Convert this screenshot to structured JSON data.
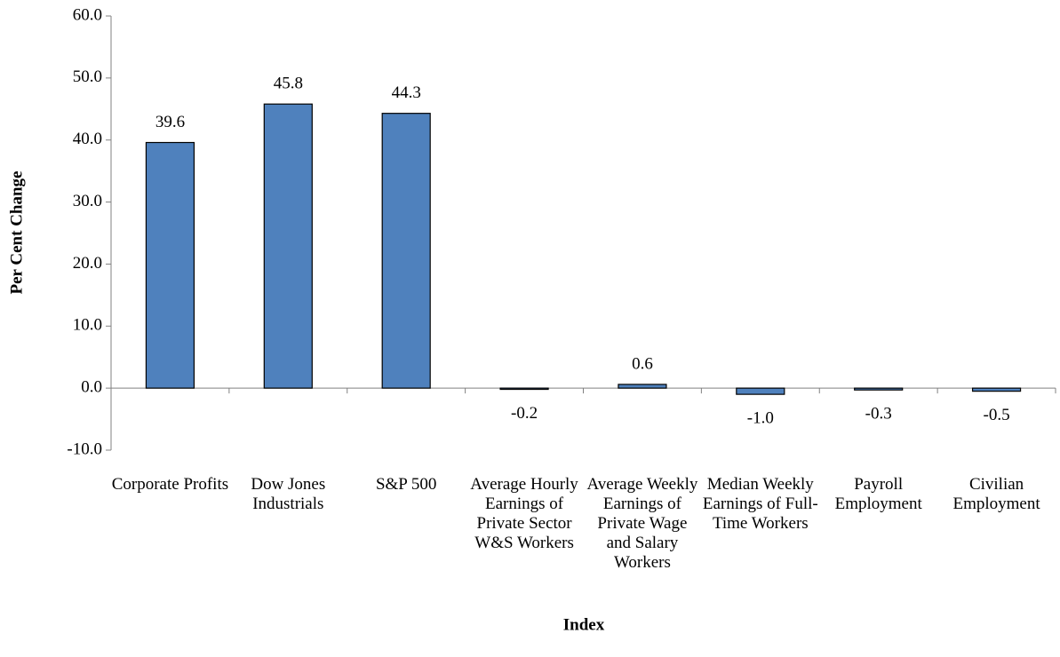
{
  "chart_data": {
    "type": "bar",
    "x_label": "Index",
    "y_label": "Per Cent Change",
    "categories": [
      "Corporate Profits",
      "Dow Jones Industrials",
      "S&P 500",
      "Average Hourly Earnings of Private Sector W&S Workers",
      "Average Weekly Earnings of Private Wage and Salary Workers",
      "Median Weekly Earnings of Full-Time Workers",
      "Payroll Employment",
      "Civilian Employment"
    ],
    "values": [
      39.6,
      45.8,
      44.3,
      -0.2,
      0.6,
      -1.0,
      -0.3,
      -0.5
    ],
    "value_labels": [
      "39.6",
      "45.8",
      "44.3",
      "-0.2",
      "0.6",
      "-1.0",
      "-0.3",
      "-0.5"
    ],
    "color": "#4f81bd",
    "ylim": [
      -10,
      60
    ],
    "yticks": [
      {
        "value": -10,
        "label": "-10.0"
      },
      {
        "value": 0,
        "label": "0.0"
      },
      {
        "value": 10,
        "label": "10.0"
      },
      {
        "value": 20,
        "label": "20.0"
      },
      {
        "value": 30,
        "label": "30.0"
      },
      {
        "value": 40,
        "label": "40.0"
      },
      {
        "value": 50,
        "label": "50.0"
      },
      {
        "value": 60,
        "label": "60.0"
      }
    ],
    "grid": false
  }
}
